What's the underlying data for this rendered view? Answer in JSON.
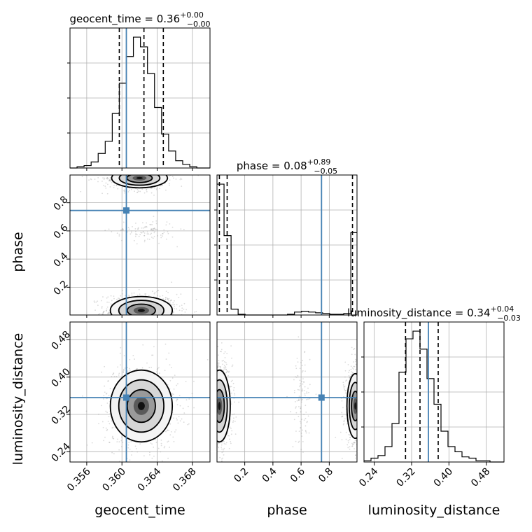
{
  "chart_data": {
    "type": "corner",
    "parameters": [
      "geocent_time",
      "phase",
      "luminosity_distance"
    ],
    "truth_color": "#4682b4",
    "truths": {
      "geocent_time": 0.3605,
      "phase": 0.745,
      "luminosity_distance": 0.356
    },
    "titles": {
      "geocent_time": {
        "prefix": "geocent_time = 0.36",
        "plus": "+0.00",
        "minus": "−0.00"
      },
      "phase": {
        "prefix": "phase = 0.08",
        "plus": "+0.89",
        "minus": "−0.05"
      },
      "luminosity_distance": {
        "prefix": "luminosity_distance = 0.34",
        "plus": "+0.04",
        "minus": "−0.03"
      }
    },
    "axis_labels": {
      "x": [
        "geocent_time",
        "phase",
        "luminosity_distance"
      ],
      "y": [
        "phase",
        "luminosity_distance"
      ]
    },
    "ranges": {
      "geocent_time": [
        0.3541,
        0.37
      ],
      "phase": [
        0.003,
        0.997
      ],
      "luminosity_distance": [
        0.218,
        0.518
      ]
    },
    "ticks": {
      "geocent_time": [
        {
          "v": 0.356,
          "label": "0.356"
        },
        {
          "v": 0.36,
          "label": "0.360"
        },
        {
          "v": 0.364,
          "label": "0.364"
        },
        {
          "v": 0.368,
          "label": "0.368"
        }
      ],
      "phase": [
        {
          "v": 0.2,
          "label": "0.2"
        },
        {
          "v": 0.4,
          "label": "0.4"
        },
        {
          "v": 0.6,
          "label": "0.6"
        },
        {
          "v": 0.8,
          "label": "0.8"
        }
      ],
      "luminosity_distance": [
        {
          "v": 0.24,
          "label": "0.24"
        },
        {
          "v": 0.32,
          "label": "0.32"
        },
        {
          "v": 0.4,
          "label": "0.40"
        },
        {
          "v": 0.48,
          "label": "0.48"
        }
      ]
    },
    "quantiles": {
      "geocent_time": [
        0.3597,
        0.3625,
        0.3647
      ],
      "phase": [
        0.02,
        0.075,
        0.965
      ],
      "luminosity_distance": [
        0.307,
        0.338,
        0.377
      ]
    },
    "histograms": {
      "geocent_time": {
        "edges": [
          0.3541,
          0.3549,
          0.3557,
          0.3565,
          0.3573,
          0.3581,
          0.3589,
          0.3597,
          0.3605,
          0.3613,
          0.3621,
          0.3629,
          0.3637,
          0.3645,
          0.3653,
          0.3661,
          0.3669,
          0.3677,
          0.3685,
          0.3693,
          0.37
        ],
        "counts": [
          0,
          1,
          2,
          5,
          12,
          22,
          45,
          70,
          92,
          108,
          100,
          78,
          50,
          28,
          14,
          6,
          3,
          1,
          0,
          0
        ]
      },
      "phase": {
        "edges": [
          0.003,
          0.053,
          0.103,
          0.153,
          0.203,
          0.253,
          0.303,
          0.353,
          0.403,
          0.453,
          0.503,
          0.553,
          0.603,
          0.653,
          0.703,
          0.753,
          0.803,
          0.853,
          0.903,
          0.953,
          0.997
        ],
        "counts": [
          178,
          108,
          8,
          1,
          0,
          0,
          0,
          0,
          0,
          0,
          1,
          4,
          5,
          4,
          3,
          2,
          1,
          1,
          2,
          112
        ]
      },
      "luminosity_distance": {
        "edges": [
          0.218,
          0.233,
          0.248,
          0.263,
          0.278,
          0.293,
          0.308,
          0.323,
          0.338,
          0.353,
          0.368,
          0.383,
          0.398,
          0.413,
          0.428,
          0.443,
          0.458,
          0.473,
          0.488,
          0.503,
          0.518
        ],
        "counts": [
          1,
          3,
          5,
          12,
          30,
          70,
          96,
          102,
          88,
          65,
          45,
          24,
          12,
          8,
          4,
          3,
          1,
          1,
          0,
          0
        ]
      }
    },
    "blobs_2d": {
      "geocent_time|phase": [
        {
          "cx": 0.3622,
          "cy": 0.035,
          "sx": 0.0016,
          "sy": 0.045,
          "amp": 1.0
        },
        {
          "cx": 0.362,
          "cy": 0.975,
          "sx": 0.0016,
          "sy": 0.035,
          "amp": 0.55
        },
        {
          "cx": 0.3625,
          "cy": 0.6,
          "sx": 0.0014,
          "sy": 0.03,
          "amp": 0.12
        }
      ],
      "geocent_time|luminosity_distance": [
        {
          "cx": 0.3622,
          "cy": 0.338,
          "sx": 0.0016,
          "sy": 0.035,
          "amp": 1.0
        }
      ],
      "phase|luminosity_distance": [
        {
          "cx": 0.02,
          "cy": 0.338,
          "sx": 0.035,
          "sy": 0.035,
          "amp": 1.0
        },
        {
          "cx": 0.985,
          "cy": 0.338,
          "sx": 0.03,
          "sy": 0.035,
          "amp": 0.7
        },
        {
          "cx": 0.6,
          "cy": 0.345,
          "sx": 0.025,
          "sy": 0.04,
          "amp": 0.12
        }
      ]
    },
    "grid": true
  }
}
